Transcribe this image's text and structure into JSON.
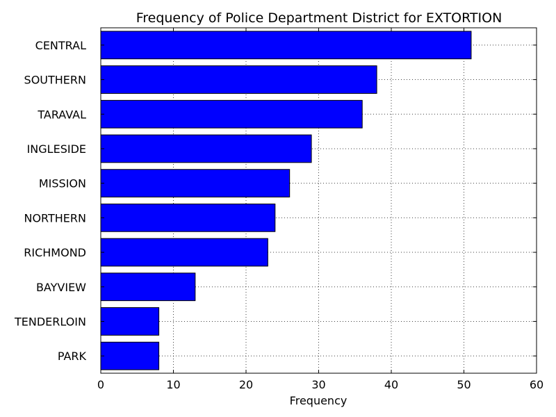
{
  "chart_data": {
    "type": "bar",
    "orientation": "horizontal",
    "title": "Frequency of Police Department District for EXTORTION",
    "xlabel": "Frequency",
    "ylabel": "",
    "xlim": [
      0,
      60
    ],
    "x_ticks": [
      0,
      10,
      20,
      30,
      40,
      50,
      60
    ],
    "grid": true,
    "legend": "none",
    "bar_color": "#0000ff",
    "categories": [
      "CENTRAL",
      "SOUTHERN",
      "TARAVAL",
      "INGLESIDE",
      "MISSION",
      "NORTHERN",
      "RICHMOND",
      "BAYVIEW",
      "TENDERLOIN",
      "PARK"
    ],
    "values": [
      51,
      38,
      36,
      29,
      26,
      24,
      23,
      13,
      8,
      8
    ]
  }
}
